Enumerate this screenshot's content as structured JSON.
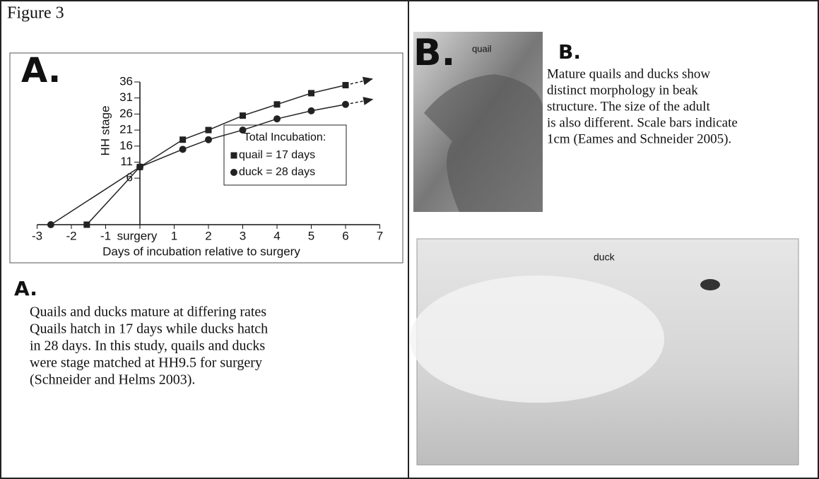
{
  "header": {
    "title": "Figure 3"
  },
  "chart_data": {
    "type": "line",
    "letter": "A.",
    "x_label": "Days of incubation relative to surgery",
    "y_label": "HH stage",
    "xlim": [
      -3,
      7
    ],
    "ylim": [
      -8.5,
      36
    ],
    "xticks": [
      -3,
      -2,
      -1,
      {
        "value": 0,
        "label": "surgery"
      },
      1,
      2,
      3,
      4,
      5,
      6,
      7
    ],
    "yticks": [
      6,
      11,
      16,
      21,
      26,
      31,
      36
    ],
    "legend_title": "Total Incubation:",
    "series": [
      {
        "name": "quail = 17 days",
        "marker": "square",
        "color": "#222",
        "x": [
          -1.55,
          0,
          1.25,
          2,
          3,
          4,
          5,
          6
        ],
        "values": [
          -8.5,
          9.5,
          18,
          21,
          25.5,
          29,
          32.5,
          35
        ]
      },
      {
        "name": "duck = 28 days",
        "marker": "circle",
        "color": "#222",
        "x": [
          -2.6,
          0,
          1.25,
          2,
          3,
          4,
          5,
          6
        ],
        "values": [
          -8.5,
          9.5,
          15,
          18,
          21,
          24.5,
          27,
          29
        ]
      }
    ]
  },
  "panel_a": {
    "letter": "A.",
    "caption": [
      "Quails and ducks mature at differing rates",
      "Quails hatch in 17 days while ducks hatch",
      "in 28 days.  In this study, quails and ducks",
      "were stage matched at HH9.5 for surgery",
      "(Schneider and Helms 2003)."
    ]
  },
  "panel_b": {
    "letter": "B.",
    "quail_label": "quail",
    "duck_label": "duck",
    "caption_letter": "B.",
    "caption": [
      "Mature quails and ducks show",
      "distinct morphology in beak",
      "structure. The size of the adult",
      "is also different. Scale bars indicate",
      "1cm (Eames and Schneider 2005)."
    ]
  }
}
